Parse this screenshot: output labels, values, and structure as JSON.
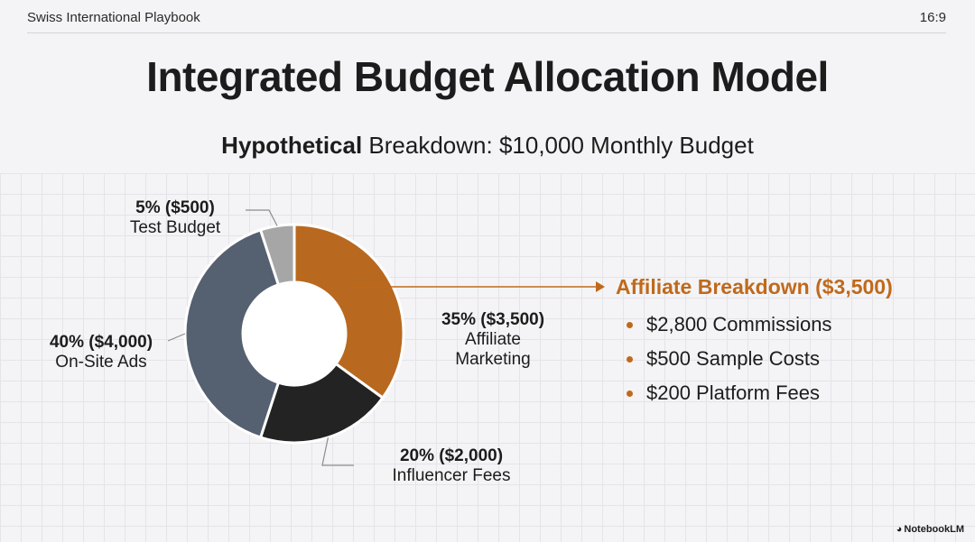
{
  "header": {
    "deck_name": "Swiss International Playbook",
    "aspect": "16:9"
  },
  "title": "Integrated Budget Allocation Model",
  "subtitle": {
    "bold": "Hypothetical",
    "rest": " Breakdown: $10,000 Monthly Budget"
  },
  "chart_data": {
    "type": "pie",
    "style": "donut",
    "total": 10000,
    "slices": [
      {
        "key": "affiliate",
        "pct": 35,
        "value": 3500,
        "color": "#b8691f",
        "label_value": "35% ($3,500)",
        "label_lines": [
          "Affiliate",
          "Marketing"
        ]
      },
      {
        "key": "influencer",
        "pct": 20,
        "value": 2000,
        "color": "#232323",
        "label_value": "20% ($2,000)",
        "label_lines": [
          "Influencer Fees"
        ]
      },
      {
        "key": "onsite",
        "pct": 40,
        "value": 4000,
        "color": "#556070",
        "label_value": "40% ($4,000)",
        "label_lines": [
          "On-Site Ads"
        ]
      },
      {
        "key": "test",
        "pct": 5,
        "value": 500,
        "color": "#a6a6a6",
        "label_value": "5% ($500)",
        "label_lines": [
          "Test Budget"
        ]
      }
    ]
  },
  "detail": {
    "title": "Affiliate Breakdown ($3,500)",
    "accent": "#c0691c",
    "items": [
      "$2,800 Commissions",
      "$500 Sample Costs",
      "$200 Platform Fees"
    ]
  },
  "brand": {
    "icon": "notebooklm-icon",
    "label": "NotebookLM"
  }
}
